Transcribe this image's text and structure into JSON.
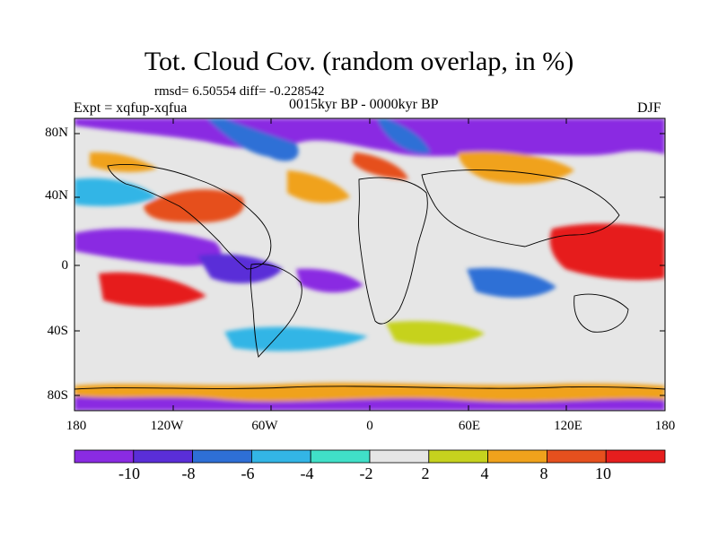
{
  "title": "Tot. Cloud Cov. (random overlap, in %)",
  "stats": "rmsd= 6.50554 diff= -0.228542",
  "experiment": "Expt = xqfup-xqfua",
  "period": "0015kyr BP - 0000kyr BP",
  "season": "DJF",
  "y_axis": {
    "ticks": [
      "80N",
      "40N",
      "0",
      "40S",
      "80S"
    ]
  },
  "x_axis": {
    "ticks": [
      "180",
      "120W",
      "60W",
      "0",
      "60E",
      "120E",
      "180"
    ]
  },
  "colorbar": {
    "labels": [
      "-10",
      "-8",
      "-6",
      "-4",
      "-2",
      "2",
      "4",
      "8",
      "10"
    ],
    "colors": [
      "#8a2be2",
      "#5a2ed8",
      "#2e6fd6",
      "#33b5e6",
      "#40e0c8",
      "#e6e6e6",
      "#c6d21e",
      "#f0a21c",
      "#e6501e",
      "#e61e1e"
    ]
  },
  "palette": {
    "neutral": "#e6e6e6",
    "coast": "#000000"
  }
}
